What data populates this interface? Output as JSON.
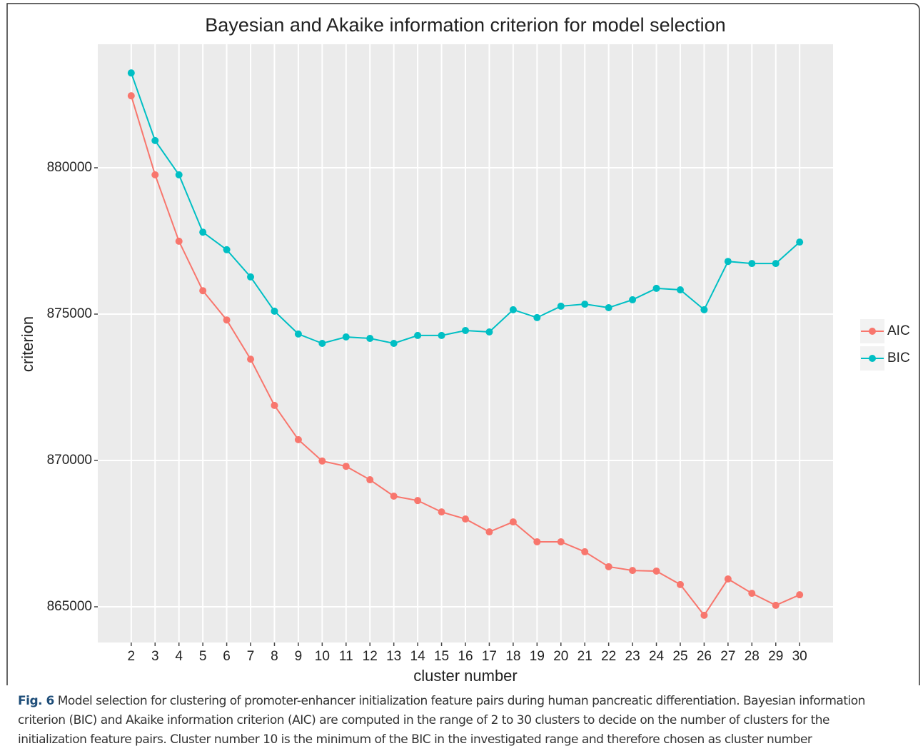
{
  "chart_data": {
    "type": "line",
    "title": "Bayesian and Akaike information criterion for model selection",
    "x_label": "cluster number",
    "y_label": "criterion",
    "x": [
      2,
      3,
      4,
      5,
      6,
      7,
      8,
      9,
      10,
      11,
      12,
      13,
      14,
      15,
      16,
      17,
      18,
      19,
      20,
      21,
      22,
      23,
      24,
      25,
      26,
      27,
      28,
      29,
      30
    ],
    "series": [
      {
        "name": "AIC",
        "color": "#F8766D",
        "values": [
          882460,
          879760,
          877490,
          875800,
          874800,
          873460,
          871880,
          870710,
          869980,
          869800,
          869340,
          868780,
          868630,
          868240,
          868000,
          867560,
          867900,
          867220,
          867220,
          866880,
          866370,
          866240,
          866220,
          865760,
          864710,
          865950,
          865460,
          865050,
          865410
        ]
      },
      {
        "name": "BIC",
        "color": "#00BFC4",
        "values": [
          883240,
          880930,
          879760,
          877800,
          877200,
          876270,
          875100,
          874320,
          874000,
          874220,
          874170,
          874000,
          874270,
          874270,
          874440,
          874390,
          875150,
          874880,
          875270,
          875340,
          875220,
          875490,
          875880,
          875830,
          875150,
          876800,
          876730,
          876730,
          877460
        ]
      }
    ],
    "xlim": [
      0.6,
      31.4
    ],
    "xticks": [
      2,
      3,
      4,
      5,
      6,
      7,
      8,
      9,
      10,
      11,
      12,
      13,
      14,
      15,
      16,
      17,
      18,
      19,
      20,
      21,
      22,
      23,
      24,
      25,
      26,
      27,
      28,
      29,
      30
    ],
    "ylim": [
      863780,
      884220
    ],
    "yticks": [
      865000,
      870000,
      875000,
      880000
    ],
    "grid": true,
    "legend": "right"
  },
  "caption": {
    "label": "Fig. 6",
    "lines": [
      "Model selection for clustering of promoter-enhancer initialization feature pairs during human pancreatic differentiation. Bayesian information",
      "criterion (BIC) and Akaike information criterion (AIC) are computed in the range of 2 to 30 clusters to decide on the number of clusters for the",
      "initialization feature pairs. Cluster number 10 is the minimum of the BIC in the investigated range and therefore chosen as cluster number"
    ]
  }
}
